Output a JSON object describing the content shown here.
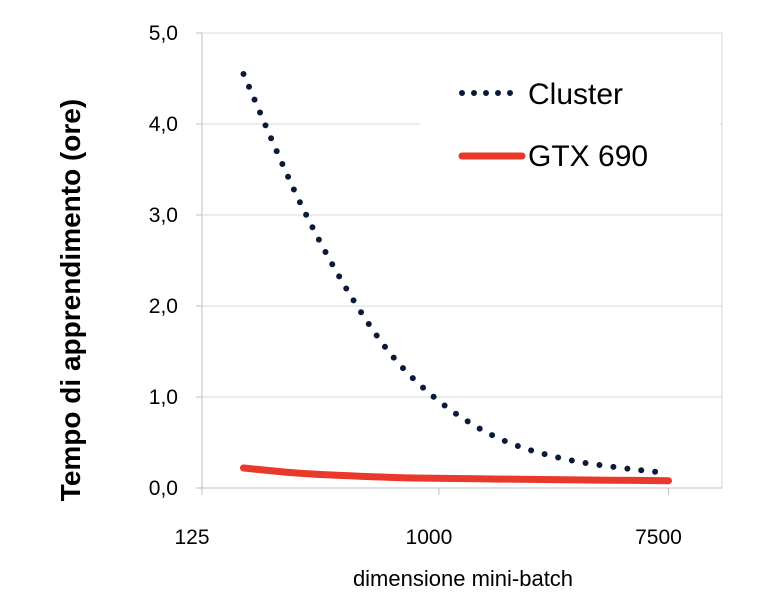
{
  "chart_data": {
    "type": "line",
    "xlabel": "dimensione mini-batch",
    "ylabel": "Tempo di apprendimento (ore)",
    "x_scale": "log",
    "xlim": [
      125,
      12000
    ],
    "ylim": [
      0,
      5
    ],
    "xticks": [
      125,
      1000,
      7500
    ],
    "xtick_labels": [
      "125",
      "1000",
      "7500"
    ],
    "yticks": [
      0,
      1,
      2,
      3,
      4,
      5
    ],
    "ytick_labels": [
      "0,0",
      "1,0",
      "2,0",
      "3,0",
      "4,0",
      "5,0"
    ],
    "grid": "horizontal",
    "legend_position": "top-right",
    "series": [
      {
        "name": "Cluster",
        "style": "dotted",
        "color": "#0b1a3a",
        "x": [
          180,
          300,
          500,
          800,
          1500,
          3000,
          7500
        ],
        "y": [
          4.55,
          3.1,
          1.95,
          1.2,
          0.62,
          0.32,
          0.16
        ]
      },
      {
        "name": "GTX 690",
        "style": "solid",
        "color": "#e8392a",
        "x": [
          180,
          300,
          500,
          800,
          1500,
          3000,
          7500
        ],
        "y": [
          0.22,
          0.16,
          0.13,
          0.11,
          0.1,
          0.09,
          0.08
        ]
      }
    ]
  }
}
